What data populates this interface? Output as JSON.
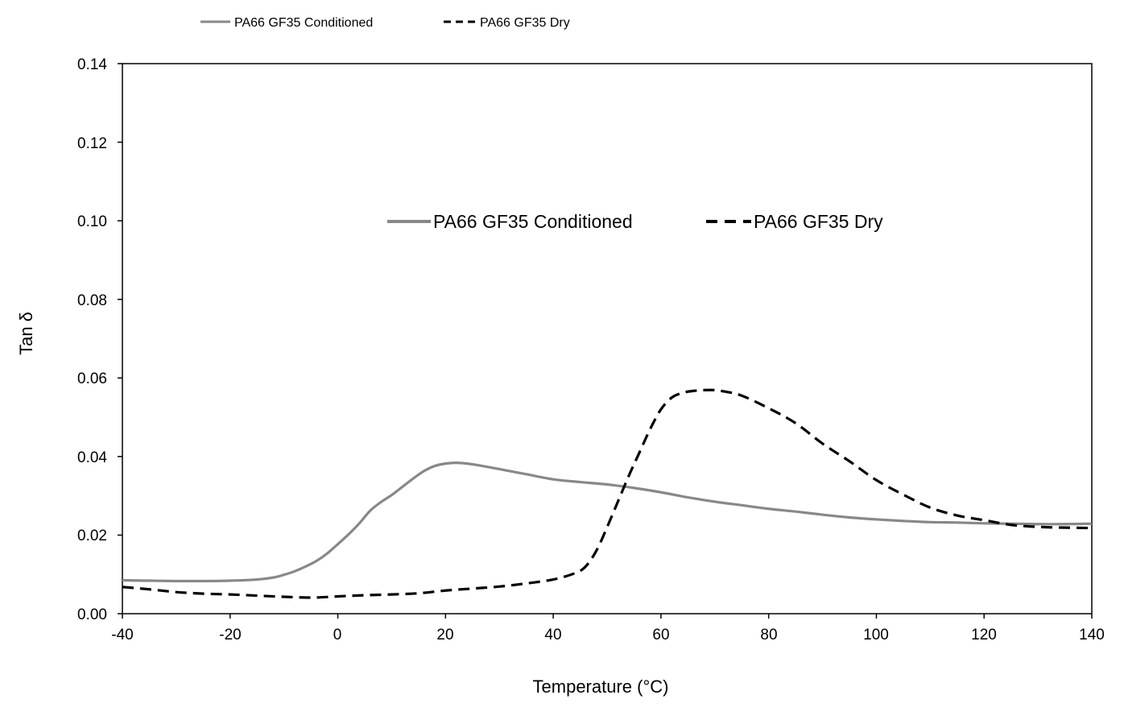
{
  "chart_data": {
    "type": "line",
    "title": "",
    "xlabel": "Temperature (°C)",
    "ylabel": "Tan δ",
    "xlim": [
      -40,
      140
    ],
    "ylim": [
      0,
      0.14
    ],
    "xticks": [
      -40,
      -20,
      0,
      20,
      40,
      60,
      80,
      100,
      120,
      140
    ],
    "xtick_labels": [
      "-40",
      "-20",
      "0",
      "20",
      "40",
      "60",
      "80",
      "100",
      "120",
      "140"
    ],
    "yticks": [
      0,
      0.02,
      0.04,
      0.06,
      0.08,
      0.1,
      0.12,
      0.14
    ],
    "ytick_labels": [
      "0.00",
      "0.02",
      "0.04",
      "0.06",
      "0.08",
      "0.10",
      "0.12",
      "0.14"
    ],
    "grid": false,
    "legend_top": {
      "placement": "top-left, above plot",
      "entries": [
        "PA66 GF35  Conditioned",
        "PA66 GF35 Dry"
      ]
    },
    "legend_inside": {
      "placement": "upper-center, inside plot",
      "entries": [
        "PA66 GF35  Conditioned",
        "PA66 GF35 Dry"
      ]
    },
    "series": [
      {
        "name": "PA66 GF35  Conditioned",
        "style": "solid",
        "color": "#888888",
        "x": [
          -40,
          -35,
          -30,
          -25,
          -20,
          -15,
          -12,
          -10,
          -8,
          -6,
          -4,
          -2,
          0,
          2,
          4,
          6,
          8,
          10,
          12,
          14,
          16,
          18,
          20,
          22,
          24,
          26,
          30,
          35,
          40,
          45,
          50,
          55,
          60,
          65,
          70,
          75,
          80,
          85,
          90,
          95,
          100,
          105,
          110,
          115,
          120,
          125,
          130,
          135,
          140
        ],
        "values": [
          0.0085,
          0.0084,
          0.0083,
          0.0083,
          0.0084,
          0.0087,
          0.0092,
          0.0099,
          0.0108,
          0.012,
          0.0134,
          0.0153,
          0.0177,
          0.0202,
          0.023,
          0.0262,
          0.0284,
          0.0302,
          0.0323,
          0.0344,
          0.0363,
          0.0376,
          0.0382,
          0.0384,
          0.0382,
          0.0378,
          0.0368,
          0.0355,
          0.0342,
          0.0335,
          0.0329,
          0.032,
          0.0309,
          0.0296,
          0.0285,
          0.0276,
          0.0267,
          0.026,
          0.0252,
          0.0245,
          0.024,
          0.0236,
          0.0233,
          0.0232,
          0.023,
          0.0229,
          0.0228,
          0.0228,
          0.0229
        ]
      },
      {
        "name": "PA66 GF35 Dry",
        "style": "dashed",
        "color": "#000000",
        "x": [
          -40,
          -35,
          -30,
          -25,
          -20,
          -15,
          -10,
          -5,
          0,
          5,
          10,
          15,
          20,
          25,
          30,
          35,
          40,
          44,
          46,
          48,
          50,
          52,
          54,
          56,
          58,
          60,
          62,
          64,
          66,
          68,
          70,
          72,
          75,
          80,
          85,
          90,
          95,
          100,
          105,
          110,
          115,
          120,
          125,
          130,
          135,
          140
        ],
        "values": [
          0.0068,
          0.0062,
          0.0055,
          0.0051,
          0.0049,
          0.0046,
          0.0043,
          0.0041,
          0.0044,
          0.0047,
          0.0049,
          0.0052,
          0.0059,
          0.0064,
          0.0069,
          0.0077,
          0.0087,
          0.0103,
          0.012,
          0.016,
          0.022,
          0.0285,
          0.035,
          0.041,
          0.047,
          0.052,
          0.055,
          0.0562,
          0.0567,
          0.0569,
          0.0569,
          0.0565,
          0.0555,
          0.0523,
          0.0485,
          0.0433,
          0.0388,
          0.034,
          0.0303,
          0.027,
          0.025,
          0.0238,
          0.0226,
          0.0221,
          0.0219,
          0.0218
        ]
      }
    ]
  }
}
